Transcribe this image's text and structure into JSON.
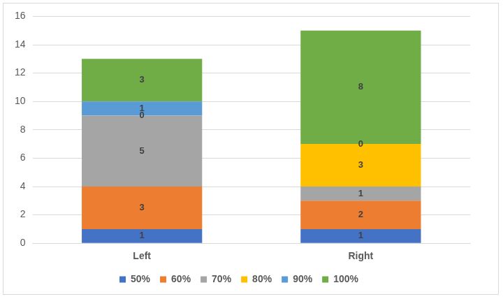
{
  "chart_data": {
    "type": "bar",
    "stacked": true,
    "data_labels": true,
    "grid": true,
    "legend": "bottom",
    "categories": [
      "Left",
      "Right"
    ],
    "series": [
      {
        "name": "50%",
        "color": "#4472c4",
        "values": [
          1,
          1
        ]
      },
      {
        "name": "60%",
        "color": "#ed7d31",
        "values": [
          3,
          2
        ]
      },
      {
        "name": "70%",
        "color": "#a5a5a5",
        "values": [
          5,
          1
        ]
      },
      {
        "name": "80%",
        "color": "#ffc000",
        "values": [
          0,
          3
        ]
      },
      {
        "name": "90%",
        "color": "#5b9bd5",
        "values": [
          1,
          0
        ]
      },
      {
        "name": "100%",
        "color": "#70ad47",
        "values": [
          3,
          8
        ]
      }
    ],
    "ylim": [
      0,
      16
    ],
    "yticks": [
      0,
      2,
      4,
      6,
      8,
      10,
      12,
      14,
      16
    ]
  }
}
